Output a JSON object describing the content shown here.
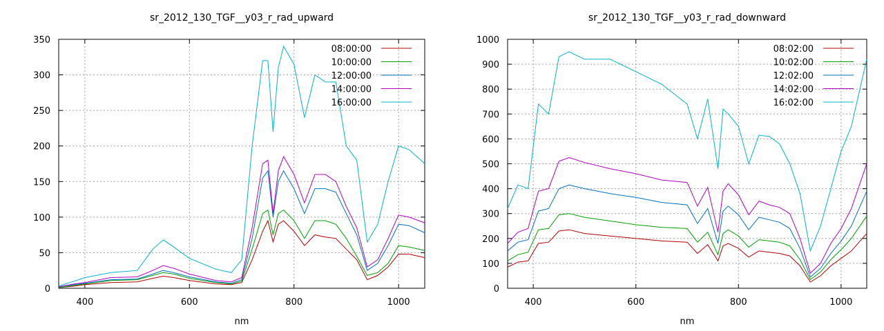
{
  "chart_data": [
    {
      "type": "line",
      "title": "sr_2012_130_TGF__y03_r_rad_upward",
      "xlabel": "nm",
      "ylabel": "",
      "xlim": [
        350,
        1050
      ],
      "ylim": [
        0,
        350
      ],
      "xticks": [
        400,
        600,
        800,
        1000
      ],
      "yticks": [
        0,
        50,
        100,
        150,
        200,
        250,
        300,
        350
      ],
      "grid": true,
      "legend": "top-right",
      "x": [
        350,
        380,
        400,
        450,
        500,
        530,
        550,
        570,
        600,
        650,
        680,
        700,
        720,
        740,
        750,
        760,
        770,
        780,
        800,
        820,
        840,
        860,
        880,
        900,
        920,
        940,
        960,
        980,
        1000,
        1020,
        1050
      ],
      "series": [
        {
          "name": "08:00:00",
          "color": "#b30000",
          "values": [
            1,
            3,
            5,
            8,
            9,
            14,
            17,
            15,
            11,
            6,
            5,
            8,
            40,
            80,
            95,
            65,
            90,
            95,
            80,
            60,
            75,
            72,
            70,
            55,
            40,
            12,
            18,
            30,
            48,
            48,
            43
          ]
        },
        {
          "name": "10:00:00",
          "color": "#00a000",
          "values": [
            1,
            4,
            6,
            11,
            12,
            18,
            22,
            20,
            14,
            8,
            6,
            10,
            55,
            105,
            110,
            75,
            105,
            110,
            95,
            70,
            95,
            95,
            90,
            70,
            45,
            18,
            22,
            35,
            60,
            58,
            53
          ]
        },
        {
          "name": "12:00:00",
          "color": "#0070c0",
          "values": [
            2,
            5,
            7,
            12,
            13,
            20,
            25,
            22,
            16,
            9,
            7,
            12,
            70,
            155,
            165,
            100,
            150,
            165,
            140,
            105,
            140,
            140,
            135,
            105,
            75,
            25,
            35,
            60,
            90,
            88,
            78
          ]
        },
        {
          "name": "14:00:00",
          "color": "#b000c0",
          "values": [
            2,
            6,
            8,
            15,
            16,
            25,
            32,
            28,
            20,
            11,
            9,
            15,
            85,
            175,
            180,
            105,
            165,
            185,
            160,
            120,
            160,
            160,
            150,
            115,
            85,
            30,
            40,
            70,
            103,
            100,
            92
          ]
        },
        {
          "name": "16:00:00",
          "color": "#00b0d0",
          "values": [
            3,
            10,
            15,
            22,
            25,
            55,
            68,
            58,
            42,
            27,
            22,
            40,
            200,
            320,
            320,
            220,
            310,
            340,
            315,
            240,
            300,
            290,
            290,
            200,
            180,
            65,
            90,
            150,
            200,
            195,
            175
          ]
        }
      ]
    },
    {
      "type": "line",
      "title": "sr_2012_130_TGF__y03_r_rad_downward",
      "xlabel": "nm",
      "ylabel": "",
      "xlim": [
        350,
        1050
      ],
      "ylim": [
        0,
        1000
      ],
      "xticks": [
        400,
        600,
        800,
        1000
      ],
      "yticks": [
        0,
        100,
        200,
        300,
        400,
        500,
        600,
        700,
        800,
        900,
        1000
      ],
      "grid": true,
      "legend": "top-right",
      "x": [
        350,
        370,
        390,
        410,
        430,
        450,
        470,
        500,
        550,
        600,
        650,
        700,
        720,
        740,
        760,
        770,
        780,
        800,
        820,
        840,
        860,
        880,
        900,
        920,
        940,
        960,
        980,
        1000,
        1020,
        1050
      ],
      "series": [
        {
          "name": "08:02:00",
          "color": "#b30000",
          "values": [
            85,
            105,
            110,
            180,
            185,
            230,
            235,
            220,
            210,
            200,
            190,
            185,
            140,
            175,
            110,
            170,
            180,
            160,
            125,
            150,
            145,
            140,
            130,
            90,
            25,
            50,
            90,
            120,
            150,
            220
          ]
        },
        {
          "name": "10:02:00",
          "color": "#00a000",
          "values": [
            110,
            135,
            145,
            235,
            240,
            295,
            300,
            285,
            270,
            255,
            245,
            240,
            185,
            225,
            135,
            220,
            235,
            210,
            165,
            195,
            190,
            185,
            170,
            115,
            35,
            65,
            115,
            155,
            200,
            290
          ]
        },
        {
          "name": "12:02:00",
          "color": "#0070c0",
          "values": [
            150,
            185,
            195,
            310,
            320,
            400,
            415,
            400,
            380,
            365,
            345,
            335,
            260,
            320,
            180,
            310,
            330,
            295,
            235,
            285,
            275,
            265,
            240,
            160,
            45,
            80,
            140,
            190,
            250,
            390
          ]
        },
        {
          "name": "14:02:00",
          "color": "#b000c0",
          "values": [
            180,
            225,
            240,
            390,
            400,
            510,
            525,
            505,
            480,
            460,
            435,
            425,
            330,
            405,
            225,
            390,
            420,
            375,
            295,
            350,
            335,
            325,
            300,
            200,
            60,
            100,
            180,
            240,
            320,
            500
          ]
        },
        {
          "name": "16:02:00",
          "color": "#00b0d0",
          "values": [
            320,
            415,
            400,
            740,
            700,
            930,
            950,
            920,
            920,
            870,
            820,
            740,
            600,
            760,
            480,
            720,
            700,
            650,
            500,
            615,
            610,
            580,
            500,
            380,
            150,
            250,
            400,
            550,
            650,
            920
          ]
        }
      ]
    }
  ]
}
